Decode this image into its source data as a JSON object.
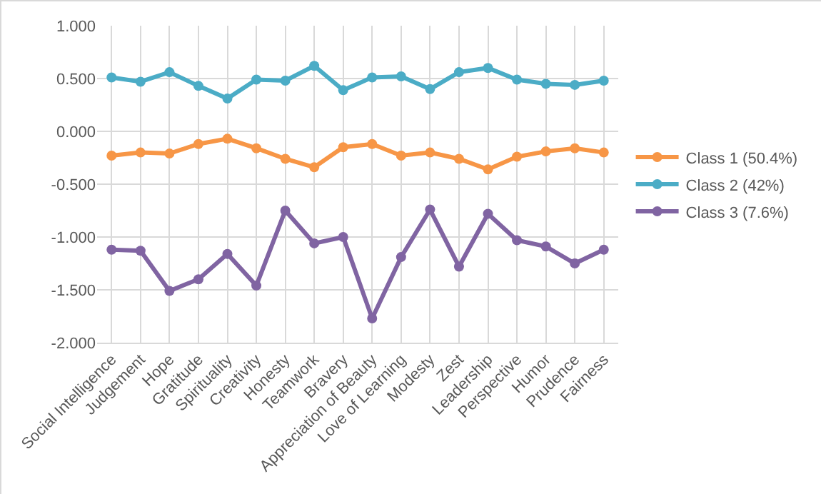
{
  "chart_data": {
    "type": "line",
    "categories": [
      "Social Intelligence",
      "Judgement",
      "Hope",
      "Gratitude",
      "Spirituality",
      "Creativity",
      "Honesty",
      "Teamwork",
      "Bravery",
      "Appreciation of Beauty",
      "Love of Learning",
      "Modesty",
      "Zest",
      "Leadership",
      "Perspective",
      "Humor",
      "Prudence",
      "Fairness"
    ],
    "series": [
      {
        "name": "Class 1 (50.4%)",
        "color": "#f79646",
        "values": [
          -0.23,
          -0.2,
          -0.21,
          -0.12,
          -0.07,
          -0.16,
          -0.26,
          -0.34,
          -0.15,
          -0.12,
          -0.23,
          -0.2,
          -0.26,
          -0.36,
          -0.24,
          -0.19,
          -0.16,
          -0.2
        ]
      },
      {
        "name": "Class 2 (42%)",
        "color": "#4bacc6",
        "values": [
          0.51,
          0.47,
          0.56,
          0.43,
          0.31,
          0.49,
          0.48,
          0.62,
          0.39,
          0.51,
          0.52,
          0.4,
          0.56,
          0.6,
          0.49,
          0.45,
          0.44,
          0.48
        ]
      },
      {
        "name": "Class 3 (7.6%)",
        "color": "#8064a2",
        "values": [
          -1.12,
          -1.13,
          -1.51,
          -1.4,
          -1.16,
          -1.46,
          -0.75,
          -1.06,
          -1.0,
          -1.77,
          -1.19,
          -0.74,
          -1.28,
          -0.78,
          -1.03,
          -1.09,
          -1.25,
          -1.12
        ]
      }
    ],
    "ylim": [
      -2,
      1
    ],
    "yticks": [
      {
        "value": 1,
        "label": "1.000"
      },
      {
        "value": 0.5,
        "label": "0.500"
      },
      {
        "value": 0,
        "label": "0.000"
      },
      {
        "value": -0.5,
        "label": "-0.500"
      },
      {
        "value": -1,
        "label": "-1.000"
      },
      {
        "value": -1.5,
        "label": "-1.500"
      },
      {
        "value": -2,
        "label": "-2.000"
      }
    ],
    "grid": true,
    "legend": "right",
    "marker": "circle",
    "line_style": "solid"
  }
}
